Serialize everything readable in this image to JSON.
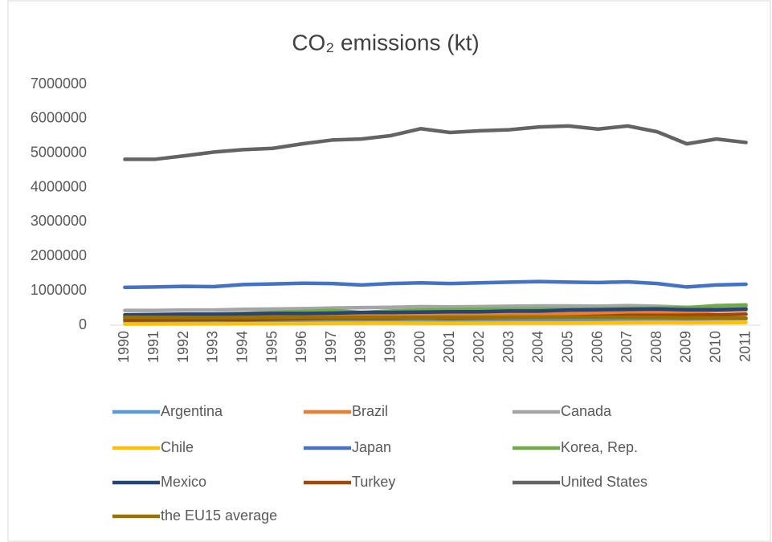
{
  "chart_data": {
    "type": "line",
    "title": "CO₂ emissions (kt)",
    "categories": [
      "1990",
      "1991",
      "1992",
      "1993",
      "1994",
      "1995",
      "1996",
      "1997",
      "1998",
      "1999",
      "2000",
      "2001",
      "2002",
      "2003",
      "2004",
      "2005",
      "2006",
      "2007",
      "2008",
      "2009",
      "2010",
      "2011"
    ],
    "ylim": [
      0,
      7000000
    ],
    "yticks": [
      0,
      1000000,
      2000000,
      3000000,
      4000000,
      5000000,
      6000000,
      7000000
    ],
    "grid": false,
    "legend": "bottom",
    "series": [
      {
        "name": "Argentina",
        "color": "#5b9bd5",
        "values": [
          110000,
          112000,
          115000,
          113000,
          120000,
          122000,
          128000,
          132000,
          135000,
          138000,
          140000,
          130000,
          125000,
          135000,
          150000,
          160000,
          170000,
          175000,
          185000,
          175000,
          185000,
          190000
        ]
      },
      {
        "name": "Brazil",
        "color": "#ed7d31",
        "values": [
          210000,
          215000,
          220000,
          225000,
          235000,
          250000,
          270000,
          290000,
          300000,
          305000,
          315000,
          320000,
          320000,
          315000,
          330000,
          340000,
          345000,
          365000,
          380000,
          360000,
          420000,
          440000
        ]
      },
      {
        "name": "Canada",
        "color": "#a5a5a5",
        "values": [
          430000,
          430000,
          440000,
          440000,
          460000,
          470000,
          480000,
          500000,
          510000,
          520000,
          540000,
          530000,
          540000,
          550000,
          560000,
          560000,
          550000,
          570000,
          550000,
          520000,
          530000,
          550000
        ]
      },
      {
        "name": "Chile",
        "color": "#ffc000",
        "values": [
          35000,
          36000,
          37000,
          38000,
          40000,
          42000,
          48000,
          55000,
          58000,
          60000,
          58000,
          56000,
          57000,
          60000,
          63000,
          65000,
          67000,
          70000,
          72000,
          70000,
          73000,
          80000
        ]
      },
      {
        "name": "Japan",
        "color": "#4472c4",
        "values": [
          1100000,
          1110000,
          1130000,
          1120000,
          1180000,
          1200000,
          1220000,
          1210000,
          1170000,
          1210000,
          1230000,
          1210000,
          1230000,
          1250000,
          1270000,
          1250000,
          1240000,
          1260000,
          1210000,
          1110000,
          1170000,
          1190000
        ]
      },
      {
        "name": "Korea, Rep.",
        "color": "#70ad47",
        "values": [
          250000,
          270000,
          290000,
          320000,
          340000,
          370000,
          400000,
          430000,
          370000,
          410000,
          440000,
          450000,
          460000,
          460000,
          470000,
          460000,
          470000,
          490000,
          500000,
          510000,
          570000,
          590000
        ]
      },
      {
        "name": "Mexico",
        "color": "#264478",
        "values": [
          300000,
          310000,
          320000,
          320000,
          330000,
          340000,
          340000,
          350000,
          370000,
          370000,
          380000,
          390000,
          390000,
          410000,
          410000,
          440000,
          450000,
          460000,
          470000,
          450000,
          450000,
          470000
        ]
      },
      {
        "name": "Turkey",
        "color": "#9e480e",
        "values": [
          150000,
          155000,
          160000,
          165000,
          160000,
          175000,
          190000,
          200000,
          200000,
          200000,
          220000,
          205000,
          215000,
          225000,
          230000,
          240000,
          260000,
          285000,
          285000,
          290000,
          300000,
          320000
        ]
      },
      {
        "name": "United States",
        "color": "#636363",
        "values": [
          4820000,
          4820000,
          4920000,
          5030000,
          5100000,
          5140000,
          5270000,
          5380000,
          5410000,
          5510000,
          5710000,
          5600000,
          5650000,
          5680000,
          5760000,
          5790000,
          5700000,
          5790000,
          5620000,
          5270000,
          5410000,
          5310000
        ]
      },
      {
        "name": "the EU15 average",
        "color": "#997300",
        "values": [
          230000,
          228000,
          225000,
          222000,
          222000,
          226000,
          232000,
          228000,
          230000,
          228000,
          228000,
          232000,
          230000,
          234000,
          234000,
          232000,
          232000,
          228000,
          224000,
          210000,
          214000,
          205000
        ]
      }
    ]
  }
}
